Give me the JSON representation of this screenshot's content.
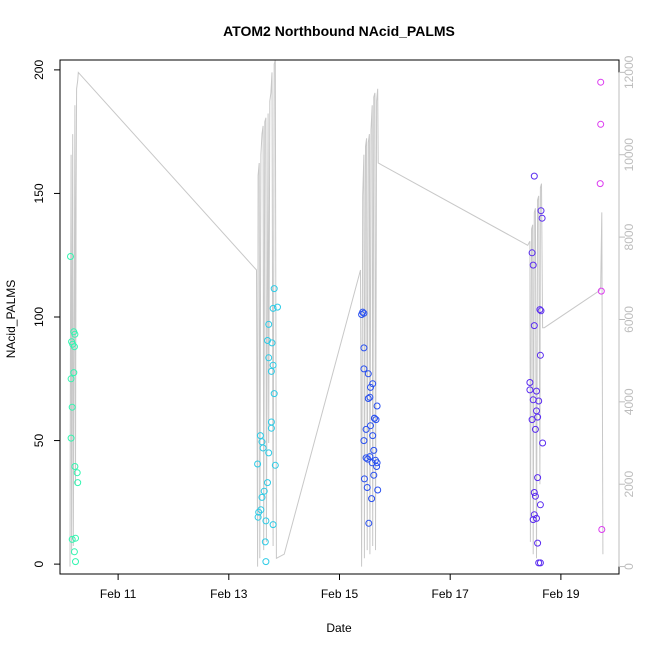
{
  "chart_data": {
    "type": "scatter",
    "title": "ATOM2 Northbound NAcid_PALMS",
    "xlabel": "Date",
    "ylabel": "NAcid_PALMS",
    "x_ticks": [
      "Feb 11",
      "Feb 13",
      "Feb 15",
      "Feb 17",
      "Feb 19"
    ],
    "x_tick_days": [
      11,
      13,
      15,
      17,
      19
    ],
    "xlim": [
      9.95,
      20.05
    ],
    "ylim": [
      -4,
      204
    ],
    "y_ticks": [
      0,
      50,
      100,
      150,
      200
    ],
    "y2_ticks": [
      0,
      2000,
      4000,
      6000,
      8000,
      10000,
      12000
    ],
    "y2lim": [
      -180,
      12300
    ],
    "grid": false,
    "legend": "none",
    "colors": {
      "background_line": "#c8c8c8",
      "axis": "#000000",
      "right_axis": "#bdbdbd"
    },
    "series": [
      {
        "color": "#33f5b0",
        "points": [
          [
            10.14,
            124.5
          ],
          [
            10.16,
            90
          ],
          [
            10.18,
            89
          ],
          [
            10.2,
            94
          ],
          [
            10.21,
            88
          ],
          [
            10.22,
            93
          ],
          [
            10.15,
            75
          ],
          [
            10.2,
            77.5
          ],
          [
            10.17,
            63.5
          ],
          [
            10.15,
            51
          ],
          [
            10.22,
            39.5
          ],
          [
            10.26,
            37
          ],
          [
            10.27,
            33
          ],
          [
            10.17,
            10
          ],
          [
            10.23,
            10.5
          ],
          [
            10.21,
            5
          ],
          [
            10.23,
            1
          ]
        ]
      },
      {
        "color": "#2ecbe6",
        "points": [
          [
            13.82,
            111.5
          ],
          [
            13.88,
            104
          ],
          [
            13.8,
            103.5
          ],
          [
            13.72,
            97
          ],
          [
            13.7,
            90.5
          ],
          [
            13.78,
            89.5
          ],
          [
            13.72,
            83.5
          ],
          [
            13.8,
            80.5
          ],
          [
            13.77,
            78
          ],
          [
            13.82,
            69
          ],
          [
            13.77,
            57.5
          ],
          [
            13.77,
            55
          ],
          [
            13.57,
            52
          ],
          [
            13.6,
            49.5
          ],
          [
            13.52,
            40.5
          ],
          [
            13.62,
            47
          ],
          [
            13.72,
            45
          ],
          [
            13.84,
            40
          ],
          [
            13.7,
            33
          ],
          [
            13.64,
            29.5
          ],
          [
            13.6,
            27
          ],
          [
            13.58,
            22
          ],
          [
            13.54,
            21
          ],
          [
            13.53,
            19
          ],
          [
            13.67,
            17.5
          ],
          [
            13.8,
            16
          ],
          [
            13.66,
            9
          ],
          [
            13.67,
            1
          ]
        ]
      },
      {
        "color": "#2950f0",
        "points": [
          [
            15.4,
            101
          ],
          [
            15.42,
            102
          ],
          [
            15.44,
            101.5
          ],
          [
            15.44,
            87.5
          ],
          [
            15.52,
            77
          ],
          [
            15.44,
            79
          ],
          [
            15.6,
            73
          ],
          [
            15.56,
            71.5
          ],
          [
            15.63,
            59
          ],
          [
            15.52,
            67
          ],
          [
            15.55,
            67.5
          ],
          [
            15.68,
            64
          ],
          [
            15.63,
            59
          ],
          [
            15.66,
            58.5
          ],
          [
            15.48,
            54.5
          ],
          [
            15.56,
            56
          ],
          [
            15.6,
            52
          ],
          [
            15.44,
            50
          ],
          [
            15.62,
            46
          ],
          [
            15.48,
            43
          ],
          [
            15.55,
            43.5
          ],
          [
            15.51,
            42.5
          ],
          [
            15.65,
            42
          ],
          [
            15.68,
            41
          ],
          [
            15.59,
            41
          ],
          [
            15.67,
            39.5
          ],
          [
            15.62,
            36
          ],
          [
            15.45,
            34.5
          ],
          [
            15.5,
            31
          ],
          [
            15.69,
            30
          ],
          [
            15.58,
            26.5
          ],
          [
            15.53,
            16.5
          ]
        ]
      },
      {
        "color": "#5a2cf0",
        "points": [
          [
            18.52,
            157
          ],
          [
            18.64,
            143
          ],
          [
            18.66,
            140
          ],
          [
            18.48,
            126
          ],
          [
            18.62,
            103
          ],
          [
            18.64,
            102.5
          ],
          [
            18.5,
            121
          ],
          [
            18.52,
            96.5
          ],
          [
            18.63,
            84.5
          ],
          [
            18.44,
            73.5
          ],
          [
            18.44,
            70.5
          ],
          [
            18.56,
            70
          ],
          [
            18.5,
            66.5
          ],
          [
            18.6,
            66
          ],
          [
            18.56,
            62
          ],
          [
            18.48,
            58.5
          ],
          [
            18.58,
            59.5
          ],
          [
            18.54,
            54.5
          ],
          [
            18.67,
            49
          ],
          [
            18.58,
            35
          ],
          [
            18.52,
            29
          ],
          [
            18.54,
            27.5
          ],
          [
            18.63,
            24
          ],
          [
            18.52,
            20
          ],
          [
            18.5,
            18
          ],
          [
            18.56,
            18.5
          ],
          [
            18.58,
            8.5
          ],
          [
            18.6,
            0.5
          ],
          [
            18.63,
            0.5
          ]
        ]
      },
      {
        "color": "#dc3cf0",
        "points": [
          [
            19.72,
            195
          ],
          [
            19.72,
            178
          ],
          [
            19.71,
            154
          ],
          [
            19.73,
            110.5
          ],
          [
            19.74,
            14
          ]
        ]
      }
    ],
    "background_series": {
      "axis": "right",
      "points": [
        [
          10.13,
          0
        ],
        [
          10.14,
          6000
        ],
        [
          10.15,
          10000
        ],
        [
          10.16,
          300
        ],
        [
          10.17,
          6500
        ],
        [
          10.18,
          10500
        ],
        [
          10.19,
          500
        ],
        [
          10.21,
          7000
        ],
        [
          10.22,
          11200
        ],
        [
          10.23,
          2000
        ],
        [
          10.24,
          9000
        ],
        [
          10.25,
          11600
        ],
        [
          10.27,
          11800
        ],
        [
          10.28,
          12000
        ],
        [
          13.5,
          7200
        ],
        [
          13.52,
          0
        ],
        [
          13.53,
          9500
        ],
        [
          13.55,
          9800
        ],
        [
          13.56,
          200
        ],
        [
          13.58,
          10000
        ],
        [
          13.6,
          10500
        ],
        [
          13.62,
          10700
        ],
        [
          13.63,
          400
        ],
        [
          13.65,
          10800
        ],
        [
          13.67,
          10900
        ],
        [
          13.68,
          600
        ],
        [
          13.71,
          11000
        ],
        [
          13.72,
          3000
        ],
        [
          13.74,
          11300
        ],
        [
          13.76,
          11500
        ],
        [
          13.78,
          12000
        ],
        [
          13.8,
          500
        ],
        [
          13.82,
          12200
        ],
        [
          13.84,
          12300
        ],
        [
          13.86,
          200
        ],
        [
          14.0,
          300
        ],
        [
          15.38,
          7200
        ],
        [
          15.4,
          0
        ],
        [
          15.42,
          9000
        ],
        [
          15.44,
          10000
        ],
        [
          15.45,
          200
        ],
        [
          15.47,
          10200
        ],
        [
          15.49,
          10400
        ],
        [
          15.5,
          400
        ],
        [
          15.52,
          10300
        ],
        [
          15.54,
          10500
        ],
        [
          15.55,
          300
        ],
        [
          15.57,
          10600
        ],
        [
          15.59,
          11200
        ],
        [
          15.6,
          500
        ],
        [
          15.62,
          11400
        ],
        [
          15.64,
          11500
        ],
        [
          15.65,
          400
        ],
        [
          15.67,
          11300
        ],
        [
          15.69,
          11600
        ],
        [
          15.7,
          9800
        ],
        [
          18.4,
          7800
        ],
        [
          18.44,
          7900
        ],
        [
          18.45,
          600
        ],
        [
          18.47,
          8200
        ],
        [
          18.49,
          8300
        ],
        [
          18.5,
          300
        ],
        [
          18.52,
          8600
        ],
        [
          18.54,
          8700
        ],
        [
          18.56,
          200
        ],
        [
          18.58,
          8900
        ],
        [
          18.6,
          9000
        ],
        [
          18.62,
          2000
        ],
        [
          18.63,
          9200
        ],
        [
          18.65,
          9300
        ],
        [
          18.67,
          5800
        ],
        [
          18.7,
          5800
        ],
        [
          19.7,
          6700
        ],
        [
          19.72,
          6800
        ],
        [
          19.74,
          8600
        ],
        [
          19.76,
          300
        ]
      ]
    }
  }
}
